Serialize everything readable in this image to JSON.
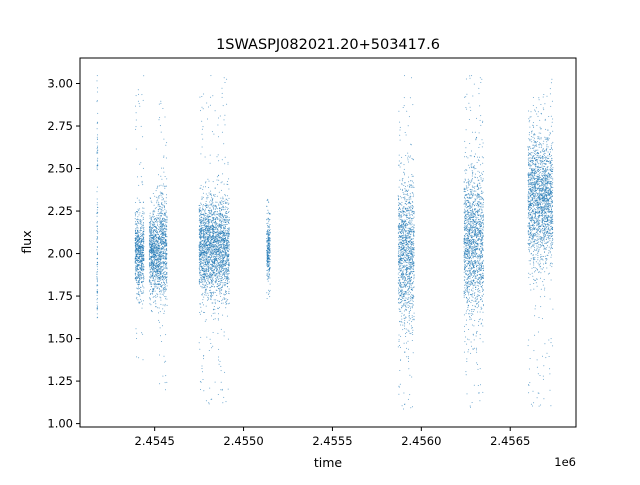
{
  "chart_data": {
    "type": "scatter",
    "title": "1SWASPJ082021.20+503417.6",
    "xlabel": "time",
    "ylabel": "flux",
    "x_offset_label": "1e6",
    "x_ticks": [
      2454500,
      2455000,
      2455500,
      2456000,
      2456500
    ],
    "x_tick_labels": [
      "2.4545",
      "2.4550",
      "2.4555",
      "2.4560",
      "2.4565"
    ],
    "y_ticks": [
      1.0,
      1.25,
      1.5,
      1.75,
      2.0,
      2.25,
      2.5,
      2.75,
      3.0
    ],
    "y_tick_labels": [
      "1.00",
      "1.25",
      "1.50",
      "1.75",
      "2.00",
      "2.25",
      "2.50",
      "2.75",
      "3.00"
    ],
    "xlim": [
      2454080,
      2456870
    ],
    "ylim": [
      0.98,
      3.15
    ],
    "grid": false,
    "marker_color": "#1f77b4",
    "clusters": [
      {
        "x_start": 2454175,
        "x_end": 2454180,
        "y_mean": 2.05,
        "y_sd": 0.5,
        "y_min": 1.6,
        "y_max": 3.05
      },
      {
        "x_start": 2454390,
        "x_end": 2454440,
        "y_mean": 2.0,
        "y_sd": 0.12,
        "y_min": 1.35,
        "y_max": 3.05
      },
      {
        "x_start": 2454470,
        "x_end": 2454520,
        "y_mean": 2.0,
        "y_sd": 0.12,
        "y_min": 1.65,
        "y_max": 2.4
      },
      {
        "x_start": 2454520,
        "x_end": 2454570,
        "y_mean": 2.02,
        "y_sd": 0.16,
        "y_min": 1.15,
        "y_max": 2.9
      },
      {
        "x_start": 2454750,
        "x_end": 2454920,
        "y_mean": 2.03,
        "y_sd": 0.15,
        "y_min": 1.1,
        "y_max": 3.05
      },
      {
        "x_start": 2455130,
        "x_end": 2455150,
        "y_mean": 2.0,
        "y_sd": 0.1,
        "y_min": 1.7,
        "y_max": 2.32
      },
      {
        "x_start": 2455870,
        "x_end": 2455960,
        "y_mean": 2.0,
        "y_sd": 0.22,
        "y_min": 1.07,
        "y_max": 3.05
      },
      {
        "x_start": 2456240,
        "x_end": 2456350,
        "y_mean": 2.05,
        "y_sd": 0.22,
        "y_min": 1.08,
        "y_max": 3.05
      },
      {
        "x_start": 2456600,
        "x_end": 2456680,
        "y_mean": 2.32,
        "y_sd": 0.2,
        "y_min": 1.08,
        "y_max": 3.05
      },
      {
        "x_start": 2456680,
        "x_end": 2456740,
        "y_mean": 2.3,
        "y_sd": 0.18,
        "y_min": 1.05,
        "y_max": 3.05
      }
    ]
  }
}
